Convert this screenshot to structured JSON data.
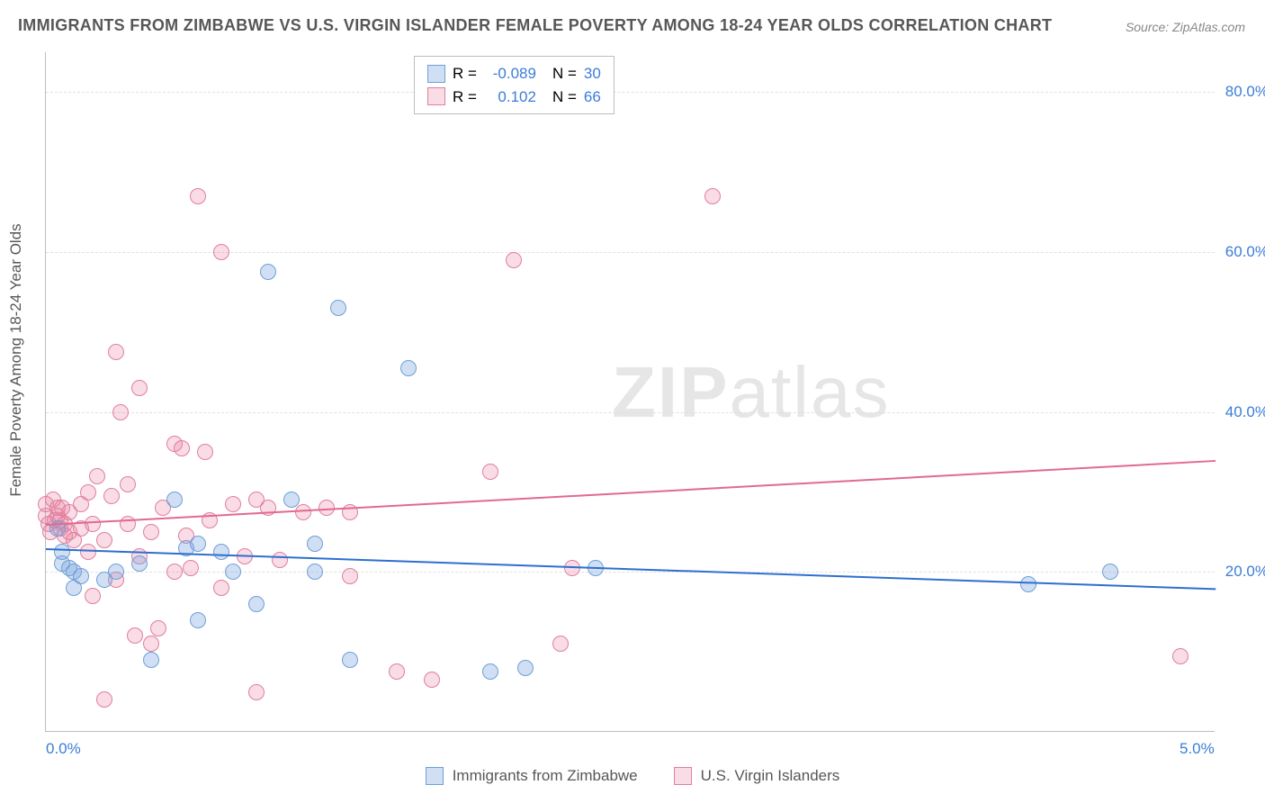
{
  "title": "IMMIGRANTS FROM ZIMBABWE VS U.S. VIRGIN ISLANDER FEMALE POVERTY AMONG 18-24 YEAR OLDS CORRELATION CHART",
  "source": "Source: ZipAtlas.com",
  "ylabel": "Female Poverty Among 18-24 Year Olds",
  "watermark_a": "ZIP",
  "watermark_b": "atlas",
  "colors": {
    "blue_fill": "rgba(121,163,220,0.35)",
    "blue_stroke": "#6f9fd8",
    "pink_fill": "rgba(235,128,160,0.28)",
    "pink_stroke": "#e07f9e",
    "blue_line": "#2e6fd0",
    "pink_line": "#e26a8e",
    "text_blue": "#3b7dd8",
    "grid": "#e0e0e0"
  },
  "axes": {
    "xmin": 0.0,
    "xmax": 5.0,
    "ymin": 0.0,
    "ymax": 85.0,
    "xticks": [
      {
        "v": 0.0,
        "label": "0.0%"
      },
      {
        "v": 5.0,
        "label": "5.0%"
      }
    ],
    "yticks": [
      {
        "v": 20.0,
        "label": "20.0%"
      },
      {
        "v": 40.0,
        "label": "40.0%"
      },
      {
        "v": 60.0,
        "label": "60.0%"
      },
      {
        "v": 80.0,
        "label": "80.0%"
      }
    ]
  },
  "series": [
    {
      "name": "Immigrants from Zimbabwe",
      "key": "blue",
      "R": "-0.089",
      "N": "30",
      "trend": {
        "x1": 0.0,
        "y1": 23.0,
        "x2": 5.0,
        "y2": 18.0
      },
      "marker_radius": 9,
      "points": [
        [
          0.05,
          25.5
        ],
        [
          0.07,
          21.0
        ],
        [
          0.07,
          22.5
        ],
        [
          0.1,
          20.5
        ],
        [
          0.12,
          20.0
        ],
        [
          0.12,
          18.0
        ],
        [
          0.15,
          19.5
        ],
        [
          0.25,
          19.0
        ],
        [
          0.3,
          20.0
        ],
        [
          0.4,
          21.0
        ],
        [
          0.45,
          9.0
        ],
        [
          0.55,
          29.0
        ],
        [
          0.6,
          23.0
        ],
        [
          0.65,
          14.0
        ],
        [
          0.65,
          23.5
        ],
        [
          0.75,
          22.5
        ],
        [
          0.8,
          20.0
        ],
        [
          0.9,
          16.0
        ],
        [
          0.95,
          57.5
        ],
        [
          1.05,
          29.0
        ],
        [
          1.15,
          20.0
        ],
        [
          1.15,
          23.5
        ],
        [
          1.25,
          53.0
        ],
        [
          1.3,
          9.0
        ],
        [
          1.55,
          45.5
        ],
        [
          1.9,
          7.5
        ],
        [
          2.05,
          8.0
        ],
        [
          2.35,
          20.5
        ],
        [
          4.2,
          18.5
        ],
        [
          4.55,
          20.0
        ]
      ]
    },
    {
      "name": "U.S. Virgin Islanders",
      "key": "pink",
      "R": "0.102",
      "N": "66",
      "trend": {
        "x1": 0.0,
        "y1": 26.0,
        "x2": 5.0,
        "y2": 34.0
      },
      "marker_radius": 9,
      "points": [
        [
          0.0,
          27.0
        ],
        [
          0.0,
          28.5
        ],
        [
          0.01,
          26.0
        ],
        [
          0.02,
          25.0
        ],
        [
          0.03,
          29.0
        ],
        [
          0.04,
          26.5
        ],
        [
          0.05,
          28.0
        ],
        [
          0.05,
          27.0
        ],
        [
          0.06,
          25.5
        ],
        [
          0.06,
          26.5
        ],
        [
          0.07,
          28.0
        ],
        [
          0.08,
          26.0
        ],
        [
          0.08,
          24.5
        ],
        [
          0.1,
          27.5
        ],
        [
          0.1,
          25.0
        ],
        [
          0.12,
          24.0
        ],
        [
          0.15,
          28.5
        ],
        [
          0.15,
          25.5
        ],
        [
          0.18,
          30.0
        ],
        [
          0.18,
          22.5
        ],
        [
          0.2,
          26.0
        ],
        [
          0.2,
          17.0
        ],
        [
          0.22,
          32.0
        ],
        [
          0.25,
          24.0
        ],
        [
          0.25,
          4.0
        ],
        [
          0.28,
          29.5
        ],
        [
          0.3,
          47.5
        ],
        [
          0.3,
          19.0
        ],
        [
          0.32,
          40.0
        ],
        [
          0.35,
          26.0
        ],
        [
          0.35,
          31.0
        ],
        [
          0.38,
          12.0
        ],
        [
          0.4,
          22.0
        ],
        [
          0.4,
          43.0
        ],
        [
          0.45,
          25.0
        ],
        [
          0.45,
          11.0
        ],
        [
          0.48,
          13.0
        ],
        [
          0.5,
          28.0
        ],
        [
          0.55,
          36.0
        ],
        [
          0.55,
          20.0
        ],
        [
          0.58,
          35.5
        ],
        [
          0.6,
          24.5
        ],
        [
          0.62,
          20.5
        ],
        [
          0.65,
          67.0
        ],
        [
          0.68,
          35.0
        ],
        [
          0.7,
          26.5
        ],
        [
          0.75,
          60.0
        ],
        [
          0.75,
          18.0
        ],
        [
          0.8,
          28.5
        ],
        [
          0.85,
          22.0
        ],
        [
          0.9,
          29.0
        ],
        [
          0.9,
          5.0
        ],
        [
          0.95,
          28.0
        ],
        [
          1.0,
          21.5
        ],
        [
          1.1,
          27.5
        ],
        [
          1.2,
          28.0
        ],
        [
          1.3,
          19.5
        ],
        [
          1.3,
          27.5
        ],
        [
          1.5,
          7.5
        ],
        [
          1.65,
          6.5
        ],
        [
          1.9,
          32.5
        ],
        [
          2.0,
          59.0
        ],
        [
          2.2,
          11.0
        ],
        [
          2.25,
          20.5
        ],
        [
          2.85,
          67.0
        ],
        [
          4.85,
          9.5
        ]
      ]
    }
  ]
}
